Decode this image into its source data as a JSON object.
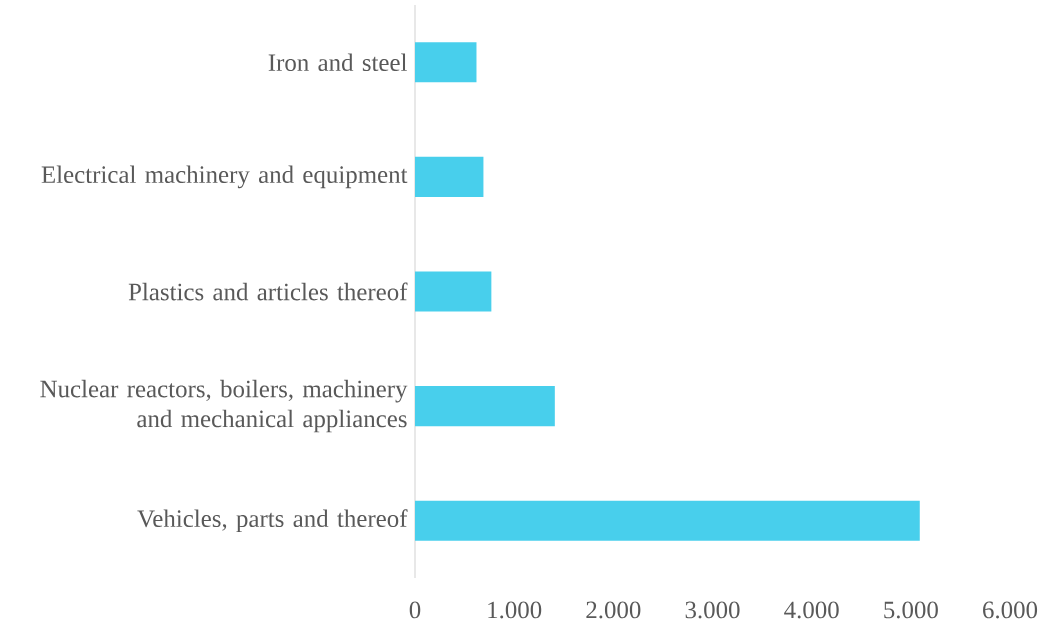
{
  "chart_data": {
    "type": "bar",
    "orientation": "horizontal",
    "categories": [
      "Iron and steel",
      "Electrical machinery and equipment",
      "Plastics and articles thereof",
      "Nuclear reactors, boilers, machinery and mechanical appliances",
      "Vehicles, parts and thereof"
    ],
    "values": [
      620,
      690,
      770,
      1410,
      5090
    ],
    "color": "#48cfec",
    "xlim": [
      0,
      6000
    ],
    "xticks": [
      0,
      {
        "value": 1000,
        "label": "1.000"
      },
      {
        "value": 2000,
        "label": "2.000"
      },
      {
        "value": 3000,
        "label": "3.000"
      },
      {
        "value": 4000,
        "label": "4.000"
      },
      {
        "value": 5000,
        "label": "5.000"
      },
      {
        "value": 6000,
        "label": "6.000"
      }
    ]
  }
}
